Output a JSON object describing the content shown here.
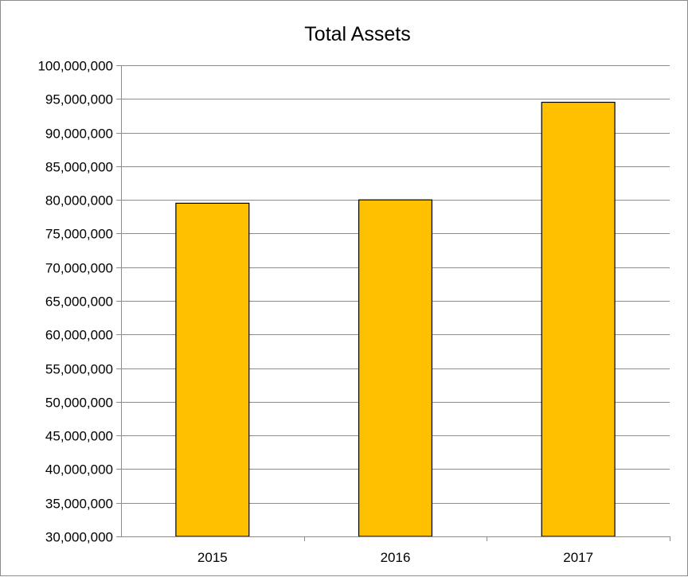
{
  "chart_data": {
    "type": "bar",
    "title": "Total Assets",
    "categories": [
      "2015",
      "2016",
      "2017"
    ],
    "values": [
      79500000,
      80000000,
      94500000
    ],
    "xlabel": "",
    "ylabel": "",
    "ylim": [
      30000000,
      100000000
    ],
    "ytick_step": 5000000,
    "ytick_labels": [
      "30,000,000",
      "35,000,000",
      "40,000,000",
      "45,000,000",
      "50,000,000",
      "55,000,000",
      "60,000,000",
      "65,000,000",
      "70,000,000",
      "75,000,000",
      "80,000,000",
      "85,000,000",
      "90,000,000",
      "95,000,000",
      "100,000,000"
    ],
    "grid": true,
    "legend": "none",
    "colors": {
      "bar_fill": "#FFC000",
      "bar_stroke": "#000000",
      "grid": "#8c8c8c",
      "axis": "#8c8c8c",
      "frame": "#8c8c8c"
    }
  }
}
